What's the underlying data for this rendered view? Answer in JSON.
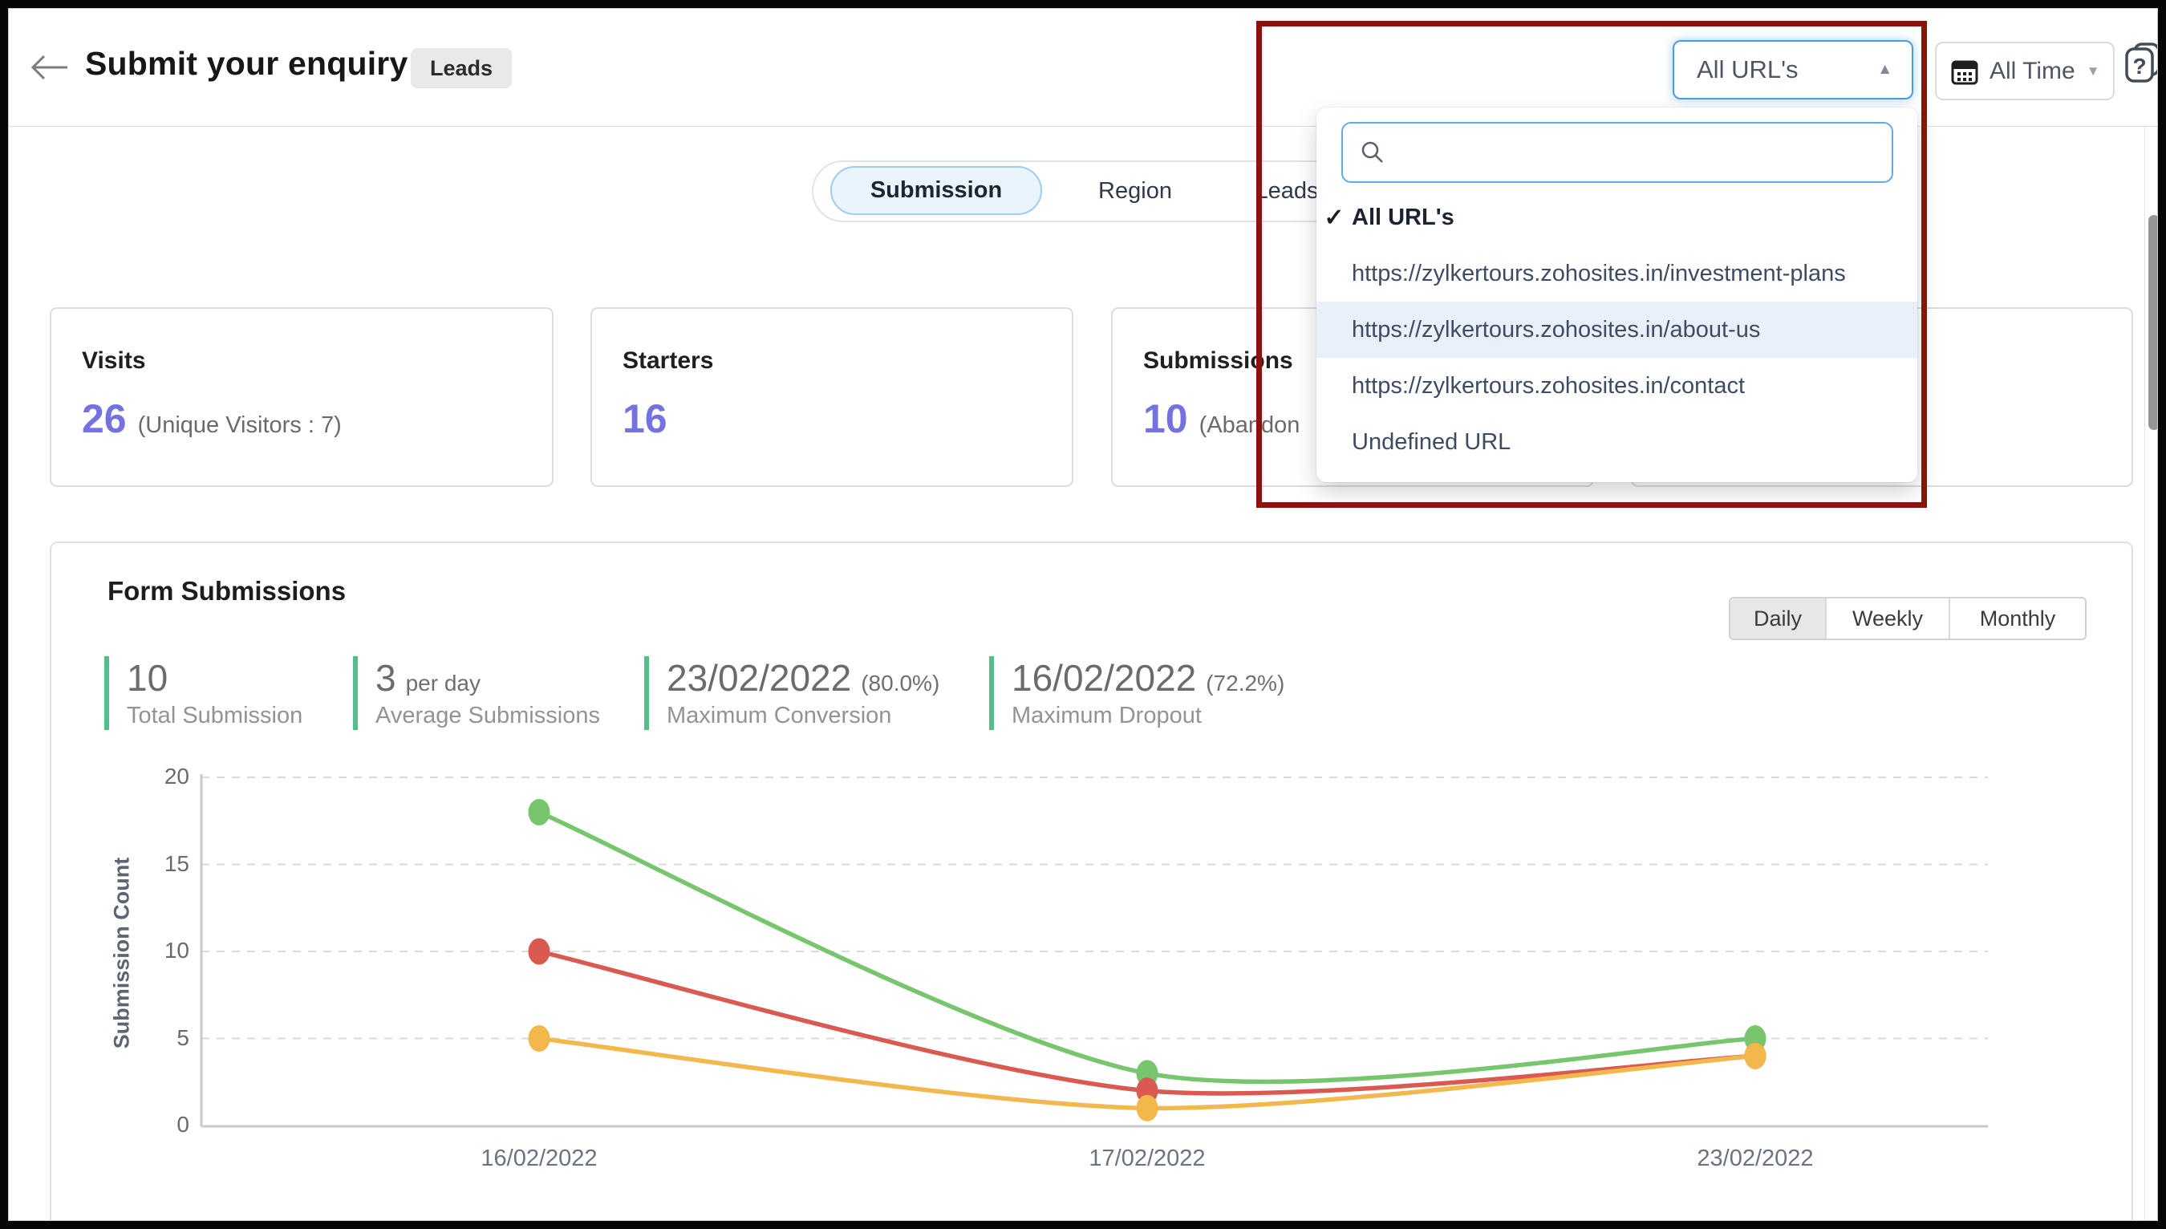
{
  "header": {
    "back_icon": "left-arrow",
    "title": "Submit your enquiry",
    "badge": "Leads"
  },
  "toolbar": {
    "url_filter": {
      "value": "All URL's",
      "caret_icon": "▲"
    },
    "date_filter": {
      "label": "All Time",
      "caret_icon": "▼",
      "icon": "calendar"
    },
    "help_icon": "?"
  },
  "url_dropdown": {
    "search": {
      "value": "",
      "placeholder": ""
    },
    "check_icon": "✓",
    "options": [
      {
        "label": "All URL's",
        "selected": true,
        "highlighted": false
      },
      {
        "label": "https://zylkertours.zohosites.in/investment-plans",
        "selected": false,
        "highlighted": false
      },
      {
        "label": "https://zylkertours.zohosites.in/about-us",
        "selected": false,
        "highlighted": true
      },
      {
        "label": "https://zylkertours.zohosites.in/contact",
        "selected": false,
        "highlighted": false
      },
      {
        "label": "Undefined URL",
        "selected": false,
        "highlighted": false
      }
    ]
  },
  "tabs": [
    {
      "label": "Submission",
      "active": true
    },
    {
      "label": "Region",
      "active": false
    },
    {
      "label": "Leads",
      "active": false
    }
  ],
  "cards": [
    {
      "title": "Visits",
      "value": "26",
      "suffix": "(Unique Visitors : 7)"
    },
    {
      "title": "Starters",
      "value": "16",
      "suffix": ""
    },
    {
      "title": "Submissions",
      "value": "10",
      "suffix": "(Abandon"
    },
    {
      "title": "",
      "value": "",
      "suffix": ""
    }
  ],
  "submissions_panel": {
    "title": "Form Submissions",
    "toggle": [
      {
        "label": "Daily",
        "active": true
      },
      {
        "label": "Weekly",
        "active": false
      },
      {
        "label": "Monthly",
        "active": false
      }
    ],
    "stats": [
      {
        "value": "10",
        "unit": "",
        "label": "Total Submission"
      },
      {
        "value": "3",
        "unit": "per day",
        "label": "Average Submissions"
      },
      {
        "value": "23/02/2022",
        "unit": "(80.0%)",
        "label": "Maximum Conversion"
      },
      {
        "value": "16/02/2022",
        "unit": "(72.2%)",
        "label": "Maximum Dropout"
      }
    ]
  },
  "chart_data": {
    "type": "line",
    "x": [
      "16/02/2022",
      "17/02/2022",
      "23/02/2022"
    ],
    "series": [
      {
        "name": "series-green",
        "color": "#77c66d",
        "values": [
          18,
          3,
          5
        ]
      },
      {
        "name": "series-red",
        "color": "#da5a52",
        "values": [
          10,
          2,
          4
        ]
      },
      {
        "name": "series-orange",
        "color": "#f3b84c",
        "values": [
          5,
          1,
          4
        ]
      }
    ],
    "ylabel": "Submission Count",
    "yticks": [
      0,
      5,
      10,
      15,
      20
    ],
    "ylim": [
      0,
      20
    ],
    "grid": "horizontal-dashed",
    "legend": "none"
  },
  "colors": {
    "accent_number": "#7372e0",
    "stat_bar_green": "#53bd8c",
    "annotation_red": "#8a140b",
    "select_border_blue": "#4a9ce0",
    "row_highlight": "#e9f0fa",
    "active_tab_bg": "#e9f4fd",
    "active_tab_border": "#9fcdf0"
  }
}
